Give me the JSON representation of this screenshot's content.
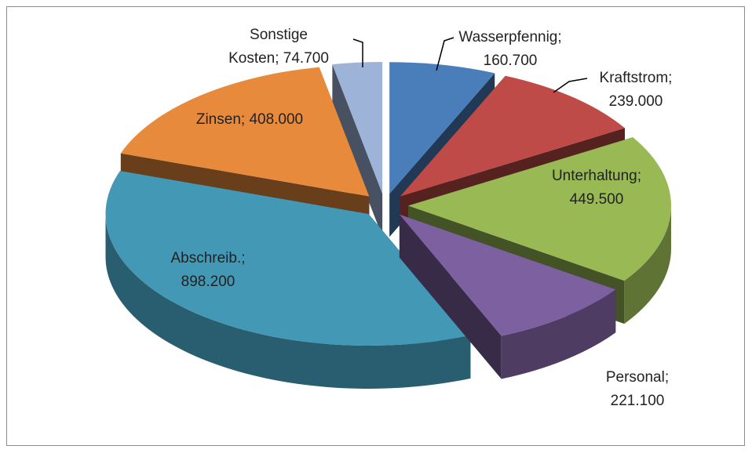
{
  "chart_data": {
    "type": "pie3d",
    "values": [
      160700,
      239000,
      449500,
      221100,
      898200,
      408000,
      74700
    ],
    "value_labels": [
      "Wasserpfennig;\n160.700",
      "Kraftstrom;\n239.000",
      "Unterhaltung;\n449.500",
      "Personal;\n221.100",
      "Abschreib.;\n898.200",
      "Zinsen; 408.000",
      "Sonstige\nKosten; 74.700"
    ],
    "colors": [
      "#4a7ebb",
      "#be4b48",
      "#98b954",
      "#7d60a0",
      "#4298b5",
      "#e88a3c",
      "#9db3d8"
    ]
  }
}
